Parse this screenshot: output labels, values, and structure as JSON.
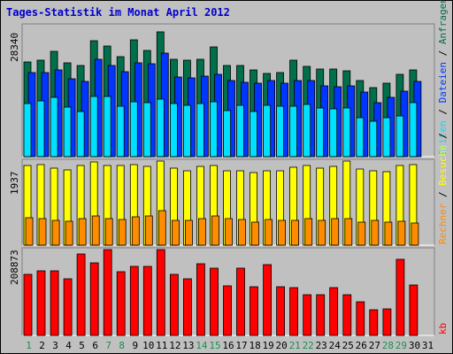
{
  "title": "Tages-Statistik im Monat April 2012",
  "right_label": {
    "part1": "Anfragen",
    "sep1": " / ",
    "part2": "Dateien",
    "sep2": " / ",
    "part3": "Seiten",
    "sep3": " / ",
    "part4": "Besuche",
    "sep4": " / ",
    "part5": "Rechner",
    "part6": "kb"
  },
  "colors": {
    "anfragen": "#006f4a",
    "dateien": "#0036ff",
    "seiten": "#00e0ff",
    "besuche": "#ffff00",
    "rechner": "#ff8c00",
    "kb": "#ff0000",
    "weekend_label": "#1f8f4f",
    "weekday_label": "#000000"
  },
  "chart_data": [
    {
      "type": "bar",
      "panel": "top",
      "ymax_label": "28340",
      "ylim": [
        0,
        28340
      ],
      "categories": [
        "1",
        "2",
        "3",
        "4",
        "5",
        "6",
        "7",
        "8",
        "9",
        "10",
        "11",
        "12",
        "13",
        "14",
        "15",
        "16",
        "17",
        "18",
        "19",
        "20",
        "21",
        "22",
        "23",
        "24",
        "25",
        "26",
        "27",
        "28",
        "29",
        "30",
        "31"
      ],
      "weekend_days": [
        "1",
        "7",
        "8",
        "14",
        "15",
        "21",
        "22",
        "28",
        "29"
      ],
      "series": [
        {
          "name": "Anfragen",
          "values": [
            20300,
            20500,
            22500,
            20100,
            19500,
            24700,
            23600,
            21300,
            25000,
            22700,
            26600,
            20700,
            20500,
            20700,
            23500,
            19500,
            19500,
            18500,
            17800,
            18000,
            20600,
            19300,
            18700,
            18700,
            18400,
            16300,
            14700,
            15600,
            17600,
            18500,
            0
          ]
        },
        {
          "name": "Dateien",
          "values": [
            17900,
            18000,
            18600,
            16700,
            16000,
            20800,
            19500,
            18200,
            20100,
            19800,
            22100,
            17000,
            16800,
            17100,
            17500,
            16300,
            15800,
            15600,
            16200,
            15700,
            16300,
            16300,
            15200,
            15000,
            15200,
            13700,
            11600,
            12600,
            14000,
            16000,
            0
          ]
        },
        {
          "name": "Seiten",
          "values": [
            11300,
            11900,
            12600,
            10500,
            9600,
            12900,
            12800,
            10800,
            11700,
            11500,
            12300,
            11400,
            11000,
            11400,
            11800,
            9800,
            10900,
            9700,
            11000,
            10800,
            10700,
            11100,
            10400,
            10200,
            10400,
            8400,
            7600,
            8400,
            8600,
            11600,
            0
          ]
        }
      ]
    },
    {
      "type": "bar",
      "panel": "middle",
      "ymax_label": "1937",
      "ylim": [
        0,
        1937
      ],
      "categories": [
        "1",
        "2",
        "3",
        "4",
        "5",
        "6",
        "7",
        "8",
        "9",
        "10",
        "11",
        "12",
        "13",
        "14",
        "15",
        "16",
        "17",
        "18",
        "19",
        "20",
        "21",
        "22",
        "23",
        "24",
        "25",
        "26",
        "27",
        "28",
        "29",
        "30",
        "31"
      ],
      "series": [
        {
          "name": "Besuche",
          "values": [
            1790,
            1810,
            1730,
            1700,
            1800,
            1880,
            1800,
            1790,
            1810,
            1780,
            1890,
            1730,
            1680,
            1780,
            1800,
            1680,
            1680,
            1640,
            1680,
            1680,
            1760,
            1790,
            1740,
            1770,
            1890,
            1710,
            1670,
            1650,
            1790,
            1820,
            0
          ]
        },
        {
          "name": "Rechner",
          "values": [
            620,
            590,
            560,
            530,
            600,
            660,
            600,
            580,
            640,
            650,
            770,
            560,
            560,
            590,
            650,
            600,
            580,
            520,
            580,
            550,
            560,
            600,
            560,
            600,
            590,
            510,
            550,
            520,
            540,
            490,
            0
          ]
        }
      ]
    },
    {
      "type": "bar",
      "panel": "bottom",
      "ymax_label": "208873",
      "ylim": [
        0,
        208873
      ],
      "categories": [
        "1",
        "2",
        "3",
        "4",
        "5",
        "6",
        "7",
        "8",
        "9",
        "10",
        "11",
        "12",
        "13",
        "14",
        "15",
        "16",
        "17",
        "18",
        "19",
        "20",
        "21",
        "22",
        "23",
        "24",
        "25",
        "26",
        "27",
        "28",
        "29",
        "30",
        "31"
      ],
      "series": [
        {
          "name": "kb",
          "values": [
            145000,
            155000,
            155000,
            136000,
            194000,
            174000,
            205000,
            151000,
            165000,
            165000,
            205000,
            146000,
            136000,
            171000,
            161000,
            119000,
            161000,
            115000,
            169000,
            115000,
            113000,
            97000,
            97000,
            113000,
            96000,
            80000,
            61000,
            64000,
            182000,
            120000,
            0
          ]
        }
      ]
    }
  ]
}
